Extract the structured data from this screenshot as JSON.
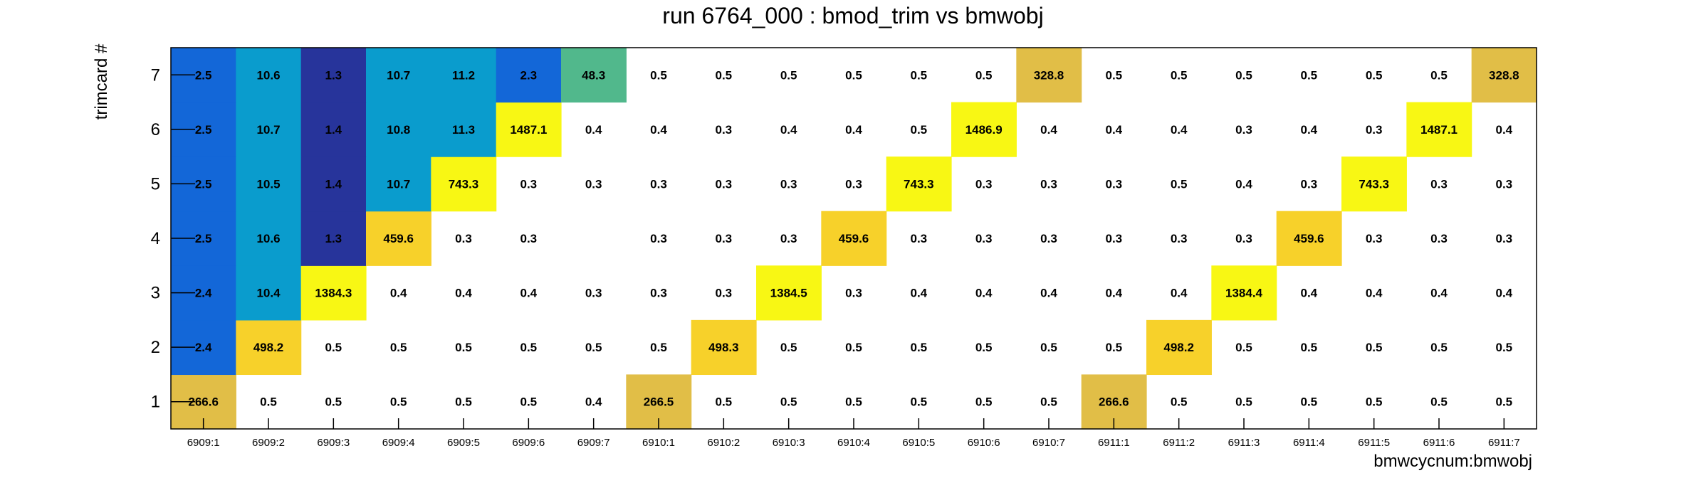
{
  "chart_data": {
    "type": "heatmap",
    "title": "run 6764_000 : bmod_trim vs bmwobj",
    "xlabel": "bmwcycnum:bmwobj",
    "ylabel": "trimcard #",
    "x_categories": [
      "6909:1",
      "6909:2",
      "6909:3",
      "6909:4",
      "6909:5",
      "6909:6",
      "6909:7",
      "6910:1",
      "6910:2",
      "6910:3",
      "6910:4",
      "6910:5",
      "6910:6",
      "6910:7",
      "6911:1",
      "6911:2",
      "6911:3",
      "6911:4",
      "6911:5",
      "6911:6",
      "6911:7"
    ],
    "y_categories": [
      "1",
      "2",
      "3",
      "4",
      "5",
      "6",
      "7"
    ],
    "values": [
      [
        266.6,
        0.5,
        0.5,
        0.5,
        0.5,
        0.5,
        0.4,
        266.5,
        0.5,
        0.5,
        0.5,
        0.5,
        0.5,
        0.5,
        266.6,
        0.5,
        0.5,
        0.5,
        0.5,
        0.5,
        0.5
      ],
      [
        2.4,
        498.2,
        0.5,
        0.5,
        0.5,
        0.5,
        0.5,
        0.5,
        498.3,
        0.5,
        0.5,
        0.5,
        0.5,
        0.5,
        0.5,
        498.2,
        0.5,
        0.5,
        0.5,
        0.5,
        0.5
      ],
      [
        2.4,
        10.4,
        1384.3,
        0.4,
        0.4,
        0.4,
        0.3,
        0.3,
        0.3,
        1384.5,
        0.3,
        0.4,
        0.4,
        0.4,
        0.4,
        0.4,
        1384.4,
        0.4,
        0.4,
        0.4,
        0.4
      ],
      [
        2.5,
        10.6,
        1.3,
        459.6,
        0.3,
        0.3,
        null,
        0.3,
        0.3,
        0.3,
        459.6,
        0.3,
        0.3,
        0.3,
        0.3,
        0.3,
        0.3,
        459.6,
        0.3,
        0.3,
        0.3
      ],
      [
        2.5,
        10.5,
        1.4,
        10.7,
        743.3,
        0.3,
        0.3,
        0.3,
        0.3,
        0.3,
        0.3,
        743.3,
        0.3,
        0.3,
        0.3,
        0.5,
        0.4,
        0.3,
        743.3,
        0.3,
        0.3
      ],
      [
        2.5,
        10.7,
        1.4,
        10.8,
        11.3,
        1487.1,
        0.4,
        0.4,
        0.3,
        0.4,
        0.4,
        0.5,
        1486.9,
        0.4,
        0.4,
        0.4,
        0.3,
        0.4,
        0.3,
        1487.1,
        0.4
      ],
      [
        2.5,
        10.6,
        1.3,
        10.7,
        11.2,
        2.3,
        48.3,
        0.5,
        0.5,
        0.5,
        0.5,
        0.5,
        0.5,
        328.8,
        0.5,
        0.5,
        0.5,
        0.5,
        0.5,
        0.5,
        328.8
      ]
    ],
    "colors": {
      "dark_blue": "#27349b",
      "blue": "#1367d8",
      "cyan": "#0a9ccd",
      "teal": "#51b88c",
      "gold": "#e1be47",
      "light_gold": "#f7d12a",
      "yellow": "#f8f714",
      "axis": "#000000",
      "background": "#ffffff"
    },
    "grid": false,
    "legend": "none"
  }
}
